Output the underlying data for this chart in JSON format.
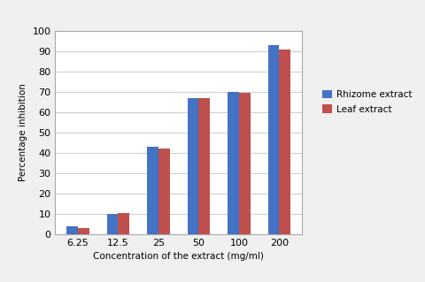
{
  "categories": [
    "6.25",
    "12.5",
    "25",
    "50",
    "100",
    "200"
  ],
  "rhizome_values": [
    4,
    10,
    43,
    67,
    70,
    93
  ],
  "leaf_values": [
    3,
    10.5,
    42,
    67,
    69.5,
    91
  ],
  "rhizome_color": "#4472C4",
  "leaf_color": "#C0504D",
  "xlabel": "Concentration of the extract (mg/ml)",
  "ylabel": "Percentage inhibition",
  "ylim": [
    0,
    100
  ],
  "yticks": [
    0,
    10,
    20,
    30,
    40,
    50,
    60,
    70,
    80,
    90,
    100
  ],
  "legend_rhizome": "Rhizome extract",
  "legend_leaf": "Leaf extract",
  "bar_width": 0.28,
  "background_color": "#ffffff",
  "grid_color": "#d0d0d0",
  "outer_bg": "#f0f0f0"
}
